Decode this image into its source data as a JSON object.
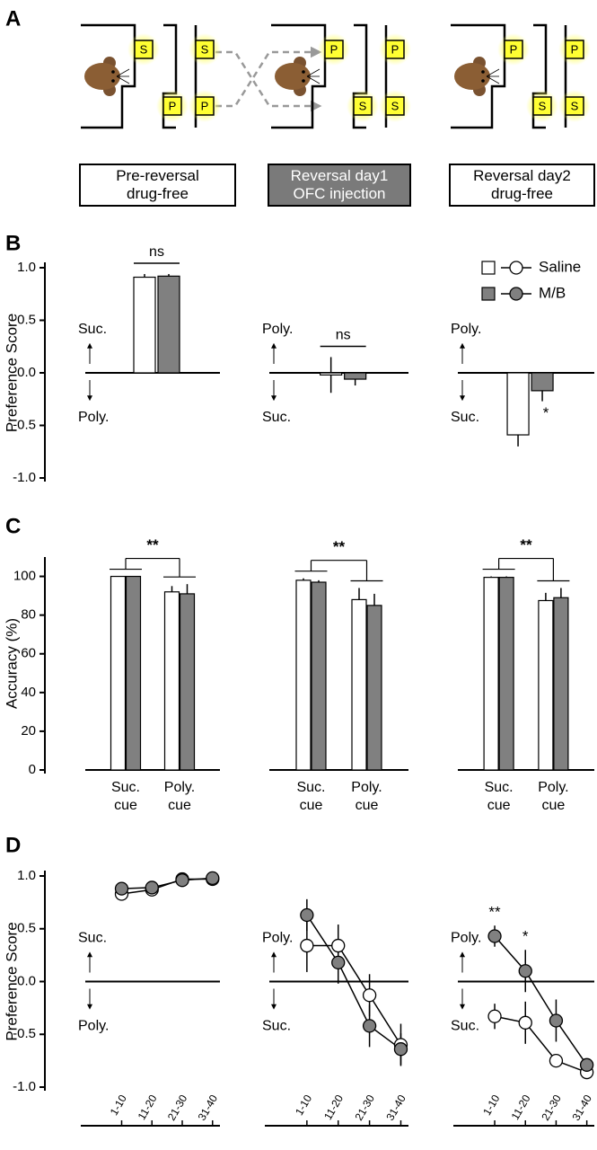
{
  "panel_labels": [
    "A",
    "B",
    "C",
    "D"
  ],
  "diagram": {
    "stages": [
      {
        "label": "Pre-reversal\ndrug-free",
        "cues": [
          "S",
          "S",
          "P",
          "P"
        ]
      },
      {
        "label": "Reversal day1\nOFC injection",
        "cues": [
          "P",
          "P",
          "S",
          "S"
        ]
      },
      {
        "label": "Reversal day2\ndrug-free",
        "cues": [
          "P",
          "P",
          "S",
          "S"
        ]
      }
    ]
  },
  "legend": [
    {
      "name": "Saline",
      "color": "#ffffff"
    },
    {
      "name": "M/B",
      "color": "#808080"
    }
  ],
  "chart_data": [
    {
      "type": "bar",
      "ylabel": "Preference Score",
      "ylim": [
        -1,
        1
      ],
      "yticks": [
        {
          "value": -1,
          "label": "-1.0"
        },
        -0.5,
        {
          "value": 0,
          "label": "0.0"
        },
        0.5,
        {
          "value": 1,
          "label": "1.0"
        }
      ],
      "up_label": "Suc.",
      "down_label": "Poly.",
      "significance": "ns",
      "series": [
        {
          "values": [
            0.91
          ],
          "errors": [
            0.03
          ]
        },
        {
          "values": [
            0.92
          ],
          "errors": [
            0.02
          ]
        }
      ]
    },
    {
      "type": "bar",
      "ylim": [
        -1,
        1
      ],
      "up_label": "Poly.",
      "down_label": "Suc.",
      "significance": "ns",
      "series": [
        {
          "values": [
            -0.02
          ],
          "errors": [
            0.17
          ]
        },
        {
          "values": [
            -0.06
          ],
          "errors": [
            0.06
          ]
        }
      ]
    },
    {
      "type": "bar",
      "ylim": [
        -1,
        1
      ],
      "up_label": "Poly.",
      "down_label": "Suc.",
      "significance": "*",
      "series": [
        {
          "values": [
            -0.59
          ],
          "errors": [
            0.11
          ]
        },
        {
          "values": [
            -0.17
          ],
          "errors": [
            0.1
          ]
        }
      ]
    },
    {
      "type": "grouped_bar",
      "ylabel": "Accuracy (%)",
      "ylim": [
        0,
        110
      ],
      "yticks": [
        0,
        20,
        40,
        60,
        80,
        100
      ],
      "categories": [
        "Suc.\ncue",
        "Poly.\ncue"
      ],
      "significance": "**",
      "series": [
        {
          "values": [
            100,
            92
          ],
          "errors": [
            0,
            3
          ]
        },
        {
          "values": [
            100,
            91
          ],
          "errors": [
            0,
            5
          ]
        }
      ]
    },
    {
      "type": "grouped_bar",
      "ylim": [
        0,
        110
      ],
      "categories": [
        "Suc.\ncue",
        "Poly.\ncue"
      ],
      "significance": "**",
      "series": [
        {
          "values": [
            98,
            88
          ],
          "errors": [
            1,
            6
          ]
        },
        {
          "values": [
            97,
            85
          ],
          "errors": [
            1,
            6
          ]
        }
      ]
    },
    {
      "type": "grouped_bar",
      "ylim": [
        0,
        110
      ],
      "categories": [
        "Suc.\ncue",
        "Poly.\ncue"
      ],
      "significance": "**",
      "series": [
        {
          "values": [
            99.5,
            87.5
          ],
          "errors": [
            0.5,
            4
          ]
        },
        {
          "values": [
            99.5,
            89
          ],
          "errors": [
            0.5,
            5
          ]
        }
      ]
    },
    {
      "type": "line",
      "ylabel": "Preference Score",
      "ylim": [
        -1,
        1
      ],
      "yticks": [
        {
          "value": -1,
          "label": "-1.0"
        },
        -0.5,
        {
          "value": 0,
          "label": "0.0"
        },
        0.5,
        {
          "value": 1,
          "label": "1.0"
        }
      ],
      "categories": [
        "1-10",
        "11-20",
        "21-30",
        "31-40"
      ],
      "up_label": "Suc.",
      "down_label": "Poly.",
      "series": [
        {
          "values": [
            0.83,
            0.87,
            0.97,
            0.97
          ],
          "errors": [
            0.04,
            0.04,
            0.03,
            0.03
          ]
        },
        {
          "values": [
            0.88,
            0.89,
            0.96,
            0.98
          ],
          "errors": [
            0.03,
            0.04,
            0.04,
            0.02
          ]
        }
      ]
    },
    {
      "type": "line",
      "ylim": [
        -1,
        1
      ],
      "categories": [
        "1-10",
        "11-20",
        "21-30",
        "31-40"
      ],
      "up_label": "Poly.",
      "down_label": "Suc.",
      "series": [
        {
          "values": [
            0.34,
            0.34,
            -0.13,
            -0.6
          ],
          "errors": [
            0.25,
            0.2,
            0.2,
            0.2
          ]
        },
        {
          "values": [
            0.63,
            0.18,
            -0.42,
            -0.64
          ],
          "errors": [
            0.15,
            0.2,
            0.2,
            0.15
          ]
        }
      ]
    },
    {
      "type": "line",
      "ylim": [
        -1,
        1
      ],
      "categories": [
        "1-10",
        "11-20",
        "21-30",
        "31-40"
      ],
      "up_label": "Poly.",
      "down_label": "Suc.",
      "point_labels": [
        "**",
        "*",
        null,
        null
      ],
      "series": [
        {
          "values": [
            -0.33,
            -0.39,
            -0.75,
            -0.86
          ],
          "errors": [
            0.12,
            0.2,
            0.06,
            0.05
          ]
        },
        {
          "values": [
            0.43,
            0.1,
            -0.37,
            -0.79
          ],
          "errors": [
            0.1,
            0.2,
            0.2,
            0.05
          ]
        }
      ]
    }
  ]
}
